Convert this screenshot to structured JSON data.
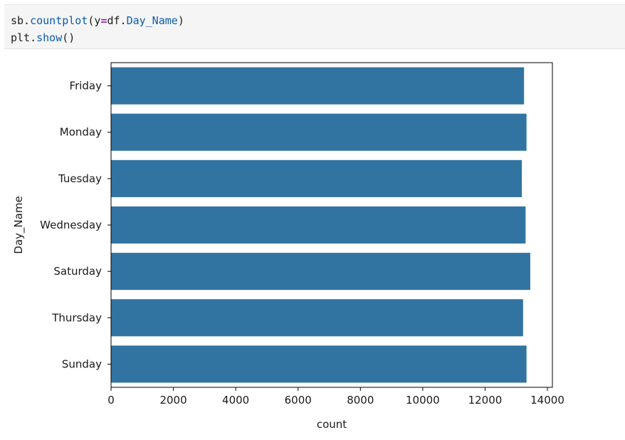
{
  "code": {
    "line1": {
      "obj": "sb.",
      "fn": "countplot",
      "open": "(",
      "kw": "y",
      "eq": "=",
      "var": "df.",
      "attr": "Day_Name",
      "close": ")"
    },
    "line2": {
      "obj": "plt.",
      "fn": "show",
      "paren": "()"
    }
  },
  "colors": {
    "bar": "#3274a1",
    "axis": "#000000"
  },
  "chart_data": {
    "type": "bar",
    "orientation": "horizontal",
    "categories": [
      "Friday",
      "Monday",
      "Tuesday",
      "Wednesday",
      "Saturday",
      "Thursday",
      "Sunday"
    ],
    "values": [
      13250,
      13330,
      13180,
      13300,
      13450,
      13220,
      13330
    ],
    "xlabel": "count",
    "ylabel": "Day_Name",
    "xlim": [
      0,
      14000
    ],
    "xticks": [
      0,
      2000,
      4000,
      6000,
      8000,
      10000,
      12000,
      14000
    ],
    "grid": false
  }
}
